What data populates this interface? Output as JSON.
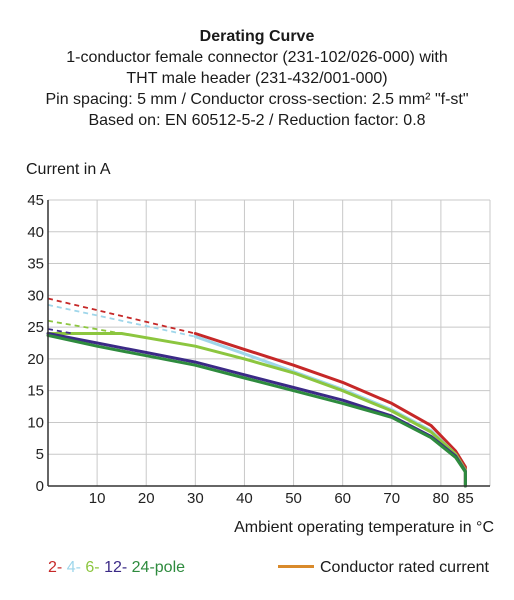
{
  "header": {
    "title": "Derating Curve",
    "lines": [
      "1-conductor female connector (231-102/026-000) with",
      "THT male header (231-432/001-000)",
      "Pin spacing: 5 mm / Conductor cross-section: 2.5 mm² \"f-st\"",
      "Based on: EN 60512-5-2 / Reduction factor: 0.8"
    ]
  },
  "colors": {
    "red": "#c62828",
    "lightblue": "#9fd6ea",
    "lightgreen": "#8cc63f",
    "navy": "#3b2a86",
    "green": "#2e8b3e",
    "orange": "#d98a2b"
  },
  "legend": {
    "poles": [
      {
        "label": "2-",
        "color": "#c62828"
      },
      {
        "label": "4-",
        "color": "#9fd6ea"
      },
      {
        "label": "6-",
        "color": "#8cc63f"
      },
      {
        "label": "12-",
        "color": "#3b2a86"
      },
      {
        "label": "24",
        "color": "#2e8b3e"
      }
    ],
    "poles_suffix": "-pole",
    "rated_label": "Conductor rated current"
  },
  "chart_data": {
    "type": "line",
    "title": "Derating Curve",
    "xlabel": "Ambient operating temperature in °C",
    "ylabel": "Current in A",
    "xlim": [
      0,
      90
    ],
    "ylim": [
      0,
      45
    ],
    "xticks": [
      10,
      20,
      30,
      40,
      50,
      60,
      70,
      80,
      85
    ],
    "yticks": [
      0,
      5,
      10,
      15,
      20,
      25,
      30,
      35,
      40,
      45
    ],
    "grid": true,
    "series": [
      {
        "name": "2-pole",
        "color": "#c62828",
        "dashed": [
          [
            0,
            29.5
          ],
          [
            30,
            24
          ]
        ],
        "solid": [
          [
            30,
            24
          ],
          [
            40,
            21.5
          ],
          [
            50,
            19
          ],
          [
            60,
            16.3
          ],
          [
            70,
            13
          ],
          [
            78,
            9.5
          ],
          [
            83,
            5.5
          ],
          [
            85,
            3
          ],
          [
            85,
            0
          ]
        ]
      },
      {
        "name": "4-pole",
        "color": "#9fd6ea",
        "dashed": [
          [
            0,
            28.5
          ],
          [
            30,
            23.5
          ]
        ],
        "solid": [
          [
            30,
            23.5
          ],
          [
            40,
            20.8
          ],
          [
            50,
            18
          ],
          [
            60,
            15.2
          ],
          [
            70,
            12
          ],
          [
            78,
            8.7
          ],
          [
            83,
            5
          ],
          [
            85,
            2.5
          ],
          [
            85,
            0
          ]
        ]
      },
      {
        "name": "6-pole",
        "color": "#8cc63f",
        "dashed": [
          [
            0,
            26
          ],
          [
            15,
            24
          ]
        ],
        "solid": [
          [
            0,
            24
          ],
          [
            15,
            24
          ],
          [
            30,
            22
          ],
          [
            40,
            20
          ],
          [
            50,
            17.8
          ],
          [
            60,
            15
          ],
          [
            70,
            11.8
          ],
          [
            78,
            8.5
          ],
          [
            83,
            5
          ],
          [
            85,
            2.5
          ],
          [
            85,
            0
          ]
        ]
      },
      {
        "name": "12-pole",
        "color": "#3b2a86",
        "dashed": [
          [
            0,
            24.7
          ],
          [
            5,
            24
          ]
        ],
        "solid": [
          [
            0,
            24
          ],
          [
            10,
            22.5
          ],
          [
            20,
            21
          ],
          [
            30,
            19.5
          ],
          [
            40,
            17.5
          ],
          [
            50,
            15.5
          ],
          [
            60,
            13.5
          ],
          [
            70,
            11
          ],
          [
            78,
            7.8
          ],
          [
            83,
            4.7
          ],
          [
            85,
            2.3
          ],
          [
            85,
            0
          ]
        ]
      },
      {
        "name": "24-pole",
        "color": "#2e8b3e",
        "dashed": [],
        "solid": [
          [
            0,
            23.7
          ],
          [
            10,
            22
          ],
          [
            20,
            20.5
          ],
          [
            30,
            19
          ],
          [
            40,
            17
          ],
          [
            50,
            15
          ],
          [
            60,
            13
          ],
          [
            70,
            10.8
          ],
          [
            78,
            7.6
          ],
          [
            83,
            4.5
          ],
          [
            85,
            2.2
          ],
          [
            85,
            0
          ]
        ]
      }
    ]
  }
}
